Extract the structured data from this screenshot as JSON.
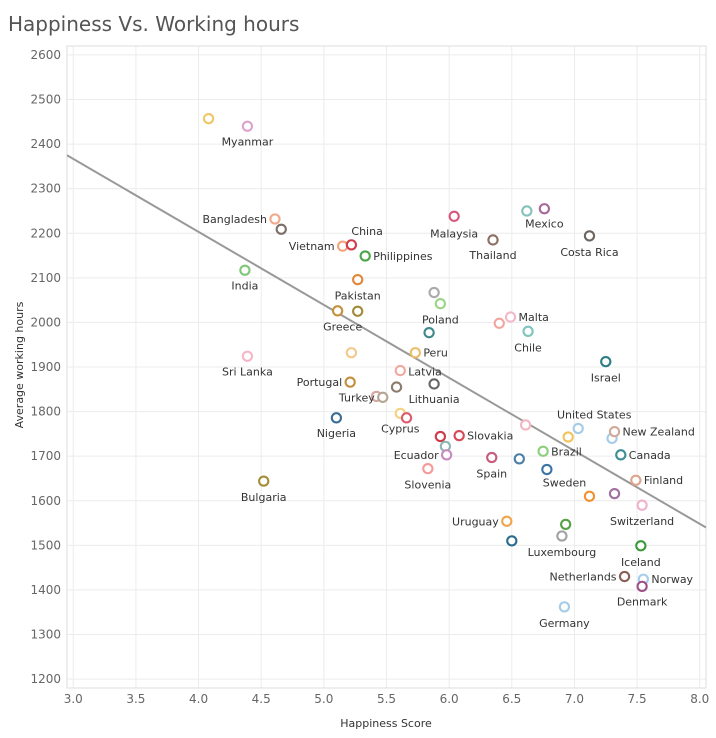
{
  "chart_data": {
    "type": "scatter",
    "title": "Happiness Vs. Working hours",
    "xlabel": "Happiness Score",
    "ylabel": "Average working hours",
    "xlim": [
      2.95,
      8.05
    ],
    "ylim": [
      1180,
      2620
    ],
    "x_ticks": [
      "3.0",
      "3.5",
      "4.0",
      "4.5",
      "5.0",
      "5.5",
      "6.0",
      "6.5",
      "7.0",
      "7.5",
      "8.0"
    ],
    "y_ticks": [
      "1200",
      "1300",
      "1400",
      "1500",
      "1600",
      "1700",
      "1800",
      "1900",
      "2000",
      "2100",
      "2200",
      "2300",
      "2400",
      "2500",
      "2600"
    ],
    "grid": true,
    "trend_line": {
      "x": [
        2.95,
        8.05
      ],
      "y": [
        2375,
        1540
      ]
    },
    "points": [
      {
        "label": "",
        "x": 4.08,
        "y": 2457,
        "color": "#f1c766"
      },
      {
        "label": "Myanmar",
        "x": 4.39,
        "y": 2440,
        "color": "#dba3cc"
      },
      {
        "label": "Bangladesh",
        "x": 4.61,
        "y": 2232,
        "color": "#f0a98c"
      },
      {
        "label": "",
        "x": 4.66,
        "y": 2209,
        "color": "#7b6f68"
      },
      {
        "label": "India",
        "x": 4.37,
        "y": 2117,
        "color": "#7ec77a"
      },
      {
        "label": "Vietnam",
        "x": 5.15,
        "y": 2171,
        "color": "#f4a47b"
      },
      {
        "label": "China",
        "x": 5.22,
        "y": 2174,
        "color": "#cf3e4d"
      },
      {
        "label": "Philippines",
        "x": 5.33,
        "y": 2149,
        "color": "#49a547"
      },
      {
        "label": "Pakistan",
        "x": 5.27,
        "y": 2096,
        "color": "#e0883b"
      },
      {
        "label": "",
        "x": 5.11,
        "y": 2026,
        "color": "#c6913e"
      },
      {
        "label": "Greece",
        "x": 5.27,
        "y": 2025,
        "color": "#a18b3a"
      },
      {
        "label": "Sri Lanka",
        "x": 4.39,
        "y": 1924,
        "color": "#f5b7c5"
      },
      {
        "label": "",
        "x": 5.22,
        "y": 1932,
        "color": "#f4c88a"
      },
      {
        "label": "Peru",
        "x": 5.73,
        "y": 1932,
        "color": "#ebbd6a"
      },
      {
        "label": "",
        "x": 5.88,
        "y": 2067,
        "color": "#aaaaaa"
      },
      {
        "label": "Poland",
        "x": 5.93,
        "y": 2042,
        "color": "#9ad487"
      },
      {
        "label": "",
        "x": 5.84,
        "y": 1977,
        "color": "#3e8a8c"
      },
      {
        "label": "Latvia",
        "x": 5.61,
        "y": 1892,
        "color": "#f2a7a0"
      },
      {
        "label": "Portugal",
        "x": 5.21,
        "y": 1866,
        "color": "#c18f3d"
      },
      {
        "label": "",
        "x": 5.58,
        "y": 1855,
        "color": "#8c7c6c"
      },
      {
        "label": "Lithuania",
        "x": 5.88,
        "y": 1862,
        "color": "#666666"
      },
      {
        "label": "",
        "x": 5.42,
        "y": 1834,
        "color": "#d6a6a0"
      },
      {
        "label": "Turkey",
        "x": 5.47,
        "y": 1832,
        "color": "#b4a593"
      },
      {
        "label": "Cyprus",
        "x": 5.61,
        "y": 1796,
        "color": "#f4d27f"
      },
      {
        "label": "",
        "x": 5.66,
        "y": 1786,
        "color": "#db5b6f"
      },
      {
        "label": "Nigeria",
        "x": 5.1,
        "y": 1786,
        "color": "#3a6e96"
      },
      {
        "label": "Bulgaria",
        "x": 4.52,
        "y": 1644,
        "color": "#a58d37"
      },
      {
        "label": "Malaysia",
        "x": 6.04,
        "y": 2238,
        "color": "#d5577a"
      },
      {
        "label": "Thailand",
        "x": 6.35,
        "y": 2185,
        "color": "#8c6e62"
      },
      {
        "label": "",
        "x": 6.62,
        "y": 2250,
        "color": "#86c2bc"
      },
      {
        "label": "Mexico",
        "x": 6.76,
        "y": 2255,
        "color": "#a56a9a"
      },
      {
        "label": "Costa Rica",
        "x": 7.12,
        "y": 2194,
        "color": "#6d655f"
      },
      {
        "label": "",
        "x": 6.4,
        "y": 1998,
        "color": "#f2a59d"
      },
      {
        "label": "Malta",
        "x": 6.49,
        "y": 2012,
        "color": "#f4b8cb"
      },
      {
        "label": "Chile",
        "x": 6.63,
        "y": 1980,
        "color": "#7fc4bf"
      },
      {
        "label": "Israel",
        "x": 7.25,
        "y": 1912,
        "color": "#2e7f83"
      },
      {
        "label": "",
        "x": 5.93,
        "y": 1744,
        "color": "#cf3a4a"
      },
      {
        "label": "Slovakia",
        "x": 6.08,
        "y": 1746,
        "color": "#d64a56"
      },
      {
        "label": "",
        "x": 5.97,
        "y": 1722,
        "color": "#8ab7b3"
      },
      {
        "label": "Ecuador",
        "x": 5.98,
        "y": 1703,
        "color": "#c88bbf"
      },
      {
        "label": "Slovenia",
        "x": 5.83,
        "y": 1672,
        "color": "#f49a98"
      },
      {
        "label": "Spain",
        "x": 6.34,
        "y": 1697,
        "color": "#c85a7b"
      },
      {
        "label": "",
        "x": 6.56,
        "y": 1694,
        "color": "#4a7fa8"
      },
      {
        "label": "",
        "x": 6.61,
        "y": 1770,
        "color": "#f3b6c2"
      },
      {
        "label": "",
        "x": 6.78,
        "y": 1670,
        "color": "#3e74a4"
      },
      {
        "label": "Brazil",
        "x": 6.75,
        "y": 1711,
        "color": "#8ccf7d"
      },
      {
        "label": "",
        "x": 6.95,
        "y": 1743,
        "color": "#f1c45c"
      },
      {
        "label": "United States",
        "x": 7.03,
        "y": 1762,
        "color": "#a5cce8"
      },
      {
        "label": "",
        "x": 7.3,
        "y": 1740,
        "color": "#a5cce8"
      },
      {
        "label": "New Zealand",
        "x": 7.32,
        "y": 1755,
        "color": "#d2aa9a"
      },
      {
        "label": "Canada",
        "x": 7.37,
        "y": 1703,
        "color": "#3e8e94"
      },
      {
        "label": "Sweden",
        "x": 7.12,
        "y": 1610,
        "color": "#f2912f"
      },
      {
        "label": "",
        "x": 7.32,
        "y": 1616,
        "color": "#a26fa0"
      },
      {
        "label": "Finland",
        "x": 7.49,
        "y": 1646,
        "color": "#dda48e"
      },
      {
        "label": "Switzerland",
        "x": 7.54,
        "y": 1590,
        "color": "#efb2cc"
      },
      {
        "label": "Uruguay",
        "x": 6.46,
        "y": 1554,
        "color": "#f0a54b"
      },
      {
        "label": "",
        "x": 6.93,
        "y": 1547,
        "color": "#59a144"
      },
      {
        "label": "Luxembourg",
        "x": 6.9,
        "y": 1521,
        "color": "#a2a2a2"
      },
      {
        "label": "",
        "x": 6.5,
        "y": 1510,
        "color": "#2e6c8e"
      },
      {
        "label": "Iceland",
        "x": 7.53,
        "y": 1499,
        "color": "#3a9a3a"
      },
      {
        "label": "Netherlands",
        "x": 7.4,
        "y": 1430,
        "color": "#8a6055"
      },
      {
        "label": "Norway",
        "x": 7.55,
        "y": 1424,
        "color": "#a5cce8"
      },
      {
        "label": "Denmark",
        "x": 7.54,
        "y": 1408,
        "color": "#9e4f86"
      },
      {
        "label": "Germany",
        "x": 6.92,
        "y": 1362,
        "color": "#a5cce8"
      }
    ]
  }
}
